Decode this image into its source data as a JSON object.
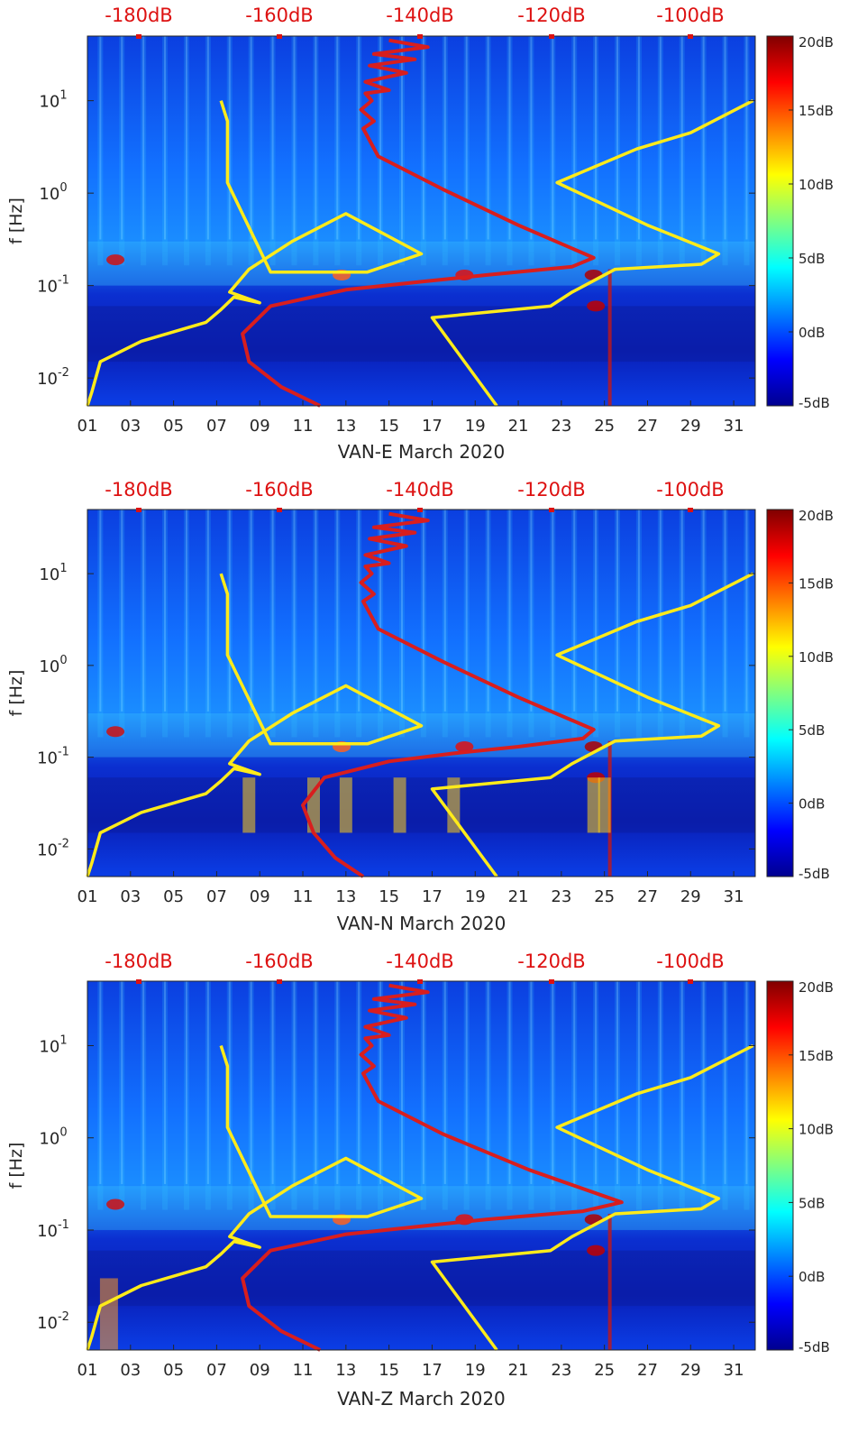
{
  "figure": {
    "colormap": [
      "#00008f",
      "#0000ff",
      "#0080ff",
      "#00ffff",
      "#80ff80",
      "#ffff00",
      "#ff8000",
      "#ff0000",
      "#800000"
    ],
    "background_color": "#0a2fc8",
    "yellow_color": "#ffeb1a",
    "red_color": "#d81e1e"
  },
  "chart_data": [
    {
      "type": "heatmap",
      "title": "VAN-E March 2020",
      "xlabel": "VAN-E March 2020",
      "ylabel": "f [Hz]",
      "xlim": [
        1,
        32
      ],
      "ylim": [
        0.005,
        50
      ],
      "yscale": "log",
      "xticks": [
        "01",
        "03",
        "05",
        "07",
        "09",
        "11",
        "13",
        "15",
        "17",
        "19",
        "21",
        "23",
        "25",
        "27",
        "29",
        "31"
      ],
      "yticks": [
        {
          "value": 0.01,
          "base": "10",
          "exp": "-2"
        },
        {
          "value": 0.1,
          "base": "10",
          "exp": "-1"
        },
        {
          "value": 1,
          "base": "10",
          "exp": "0"
        },
        {
          "value": 10,
          "base": "10",
          "exp": "1"
        }
      ],
      "top_axis_labels": [
        "-180dB",
        "-160dB",
        "-140dB",
        "-120dB",
        "-100dB"
      ],
      "colorbar": {
        "range": [
          -5,
          20
        ],
        "ticks": [
          "20dB",
          "15dB",
          "10dB",
          "5dB",
          "0dB",
          "-5dB"
        ]
      },
      "series": [
        {
          "name": "yellow-noise-model",
          "color": "#ffeb1a",
          "x": [
            1.0,
            1.2,
            1.6,
            3.5,
            6.5,
            7.2,
            7.8,
            9.0,
            7.6,
            8.5,
            10.5,
            13.0,
            16.5,
            14.0,
            9.5,
            7.5,
            7.5,
            7.2
          ],
          "y": [
            0.005,
            0.007,
            0.015,
            0.025,
            0.04,
            0.055,
            0.075,
            0.065,
            0.085,
            0.15,
            0.3,
            0.6,
            0.22,
            0.14,
            0.14,
            1.3,
            6.0,
            10.0
          ]
        },
        {
          "name": "yellow-noise-model-2",
          "color": "#ffeb1a",
          "x": [
            20.0,
            17.0,
            22.5,
            23.5,
            25.5,
            29.5,
            30.3,
            27.0,
            22.8,
            26.5,
            29.0,
            31.9
          ],
          "y": [
            0.005,
            0.045,
            0.06,
            0.085,
            0.15,
            0.17,
            0.22,
            0.45,
            1.3,
            3.0,
            4.5,
            10.0
          ]
        },
        {
          "name": "red-psd-curve",
          "color": "#d81e1e",
          "x": [
            11.8,
            10.0,
            8.5,
            8.2,
            9.5,
            13.0,
            16.5,
            19.5,
            23.5,
            24.5,
            21.0,
            17.5,
            14.5,
            13.8,
            14.3,
            13.7,
            14.2,
            13.9,
            15.0,
            13.9,
            15.8,
            14.1,
            16.2,
            14.3,
            16.8,
            15.0
          ],
          "y": [
            0.005,
            0.008,
            0.015,
            0.03,
            0.06,
            0.09,
            0.11,
            0.13,
            0.16,
            0.2,
            0.45,
            1.1,
            2.5,
            5.0,
            6.0,
            8.0,
            10.0,
            12.0,
            13.0,
            16.0,
            20.0,
            24.0,
            28.0,
            32.0,
            38.0,
            45.0
          ]
        }
      ]
    },
    {
      "type": "heatmap",
      "title": "VAN-N March 2020",
      "xlabel": "VAN-N March 2020",
      "ylabel": "f [Hz]",
      "xlim": [
        1,
        32
      ],
      "ylim": [
        0.005,
        50
      ],
      "yscale": "log",
      "xticks": [
        "01",
        "03",
        "05",
        "07",
        "09",
        "11",
        "13",
        "15",
        "17",
        "19",
        "21",
        "23",
        "25",
        "27",
        "29",
        "31"
      ],
      "yticks": [
        {
          "value": 0.01,
          "base": "10",
          "exp": "-2"
        },
        {
          "value": 0.1,
          "base": "10",
          "exp": "-1"
        },
        {
          "value": 1,
          "base": "10",
          "exp": "0"
        },
        {
          "value": 10,
          "base": "10",
          "exp": "1"
        }
      ],
      "top_axis_labels": [
        "-180dB",
        "-160dB",
        "-140dB",
        "-120dB",
        "-100dB"
      ],
      "colorbar": {
        "range": [
          -5,
          20
        ],
        "ticks": [
          "20dB",
          "15dB",
          "10dB",
          "5dB",
          "0dB",
          "-5dB"
        ]
      },
      "series": [
        {
          "name": "yellow-noise-model",
          "color": "#ffeb1a",
          "x": [
            1.0,
            1.2,
            1.6,
            3.5,
            6.5,
            7.2,
            7.8,
            9.0,
            7.6,
            8.5,
            10.5,
            13.0,
            16.5,
            14.0,
            9.5,
            7.5,
            7.5,
            7.2
          ],
          "y": [
            0.005,
            0.007,
            0.015,
            0.025,
            0.04,
            0.055,
            0.075,
            0.065,
            0.085,
            0.15,
            0.3,
            0.6,
            0.22,
            0.14,
            0.14,
            1.3,
            6.0,
            10.0
          ]
        },
        {
          "name": "yellow-noise-model-2",
          "color": "#ffeb1a",
          "x": [
            20.0,
            17.0,
            22.5,
            23.5,
            25.5,
            29.5,
            30.3,
            27.0,
            22.8,
            26.5,
            29.0,
            31.9
          ],
          "y": [
            0.005,
            0.045,
            0.06,
            0.085,
            0.15,
            0.17,
            0.22,
            0.45,
            1.3,
            3.0,
            4.5,
            10.0
          ]
        },
        {
          "name": "red-psd-curve",
          "color": "#d81e1e",
          "x": [
            13.8,
            12.5,
            11.5,
            11.0,
            12.0,
            15.0,
            18.0,
            21.0,
            24.0,
            24.5,
            21.0,
            17.5,
            14.5,
            13.8,
            14.3,
            13.7,
            14.2,
            13.9,
            15.0,
            13.9,
            15.8,
            14.1,
            16.2,
            14.3,
            16.8,
            15.0
          ],
          "y": [
            0.005,
            0.008,
            0.015,
            0.03,
            0.06,
            0.09,
            0.11,
            0.13,
            0.16,
            0.2,
            0.45,
            1.1,
            2.5,
            5.0,
            6.0,
            8.0,
            10.0,
            12.0,
            13.0,
            16.0,
            20.0,
            24.0,
            28.0,
            32.0,
            38.0,
            45.0
          ]
        }
      ]
    },
    {
      "type": "heatmap",
      "title": "VAN-Z March 2020",
      "xlabel": "VAN-Z March 2020",
      "ylabel": "f [Hz]",
      "xlim": [
        1,
        32
      ],
      "ylim": [
        0.005,
        50
      ],
      "yscale": "log",
      "xticks": [
        "01",
        "03",
        "05",
        "07",
        "09",
        "11",
        "13",
        "15",
        "17",
        "19",
        "21",
        "23",
        "25",
        "27",
        "29",
        "31"
      ],
      "yticks": [
        {
          "value": 0.01,
          "base": "10",
          "exp": "-2"
        },
        {
          "value": 0.1,
          "base": "10",
          "exp": "-1"
        },
        {
          "value": 1,
          "base": "10",
          "exp": "0"
        },
        {
          "value": 10,
          "base": "10",
          "exp": "1"
        }
      ],
      "top_axis_labels": [
        "-180dB",
        "-160dB",
        "-140dB",
        "-120dB",
        "-100dB"
      ],
      "colorbar": {
        "range": [
          -5,
          20
        ],
        "ticks": [
          "20dB",
          "15dB",
          "10dB",
          "5dB",
          "0dB",
          "-5dB"
        ]
      },
      "series": [
        {
          "name": "yellow-noise-model",
          "color": "#ffeb1a",
          "x": [
            1.0,
            1.2,
            1.6,
            3.5,
            6.5,
            7.2,
            7.8,
            9.0,
            7.6,
            8.5,
            10.5,
            13.0,
            16.5,
            14.0,
            9.5,
            7.5,
            7.5,
            7.2
          ],
          "y": [
            0.005,
            0.007,
            0.015,
            0.025,
            0.04,
            0.055,
            0.075,
            0.065,
            0.085,
            0.15,
            0.3,
            0.6,
            0.22,
            0.14,
            0.14,
            1.3,
            6.0,
            10.0
          ]
        },
        {
          "name": "yellow-noise-model-2",
          "color": "#ffeb1a",
          "x": [
            20.0,
            17.0,
            22.5,
            23.5,
            25.5,
            29.5,
            30.3,
            27.0,
            22.8,
            26.5,
            29.0,
            31.9
          ],
          "y": [
            0.005,
            0.045,
            0.06,
            0.085,
            0.15,
            0.17,
            0.22,
            0.45,
            1.3,
            3.0,
            4.5,
            10.0
          ]
        },
        {
          "name": "red-psd-curve",
          "color": "#d81e1e",
          "x": [
            11.8,
            10.0,
            8.5,
            8.2,
            9.5,
            13.0,
            16.5,
            19.5,
            24.0,
            25.8,
            21.5,
            17.5,
            14.5,
            13.8,
            14.3,
            13.7,
            14.2,
            13.9,
            15.0,
            13.9,
            15.8,
            14.1,
            16.2,
            14.3,
            16.8,
            15.0
          ],
          "y": [
            0.005,
            0.008,
            0.015,
            0.03,
            0.06,
            0.09,
            0.11,
            0.13,
            0.16,
            0.2,
            0.45,
            1.1,
            2.5,
            5.0,
            6.0,
            8.0,
            10.0,
            12.0,
            13.0,
            16.0,
            20.0,
            24.0,
            28.0,
            32.0,
            38.0,
            45.0
          ]
        }
      ]
    }
  ]
}
